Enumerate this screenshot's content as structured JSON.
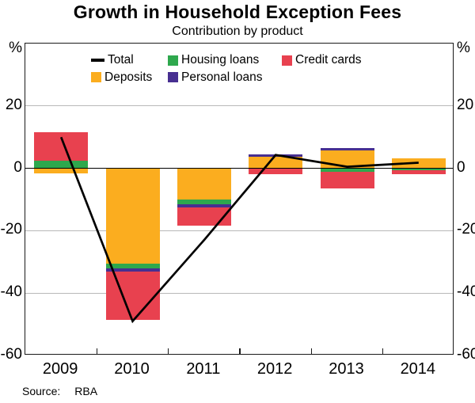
{
  "header": {
    "title": "Growth in Household Exception Fees",
    "subtitle": "Contribution by product"
  },
  "footer": {
    "source_label": "Source:",
    "source_value": "RBA"
  },
  "y_axis": {
    "unit": "%",
    "ticks": [
      {
        "label": "%",
        "value": 40
      },
      {
        "label": "20",
        "value": 20
      },
      {
        "label": "0",
        "value": 0
      },
      {
        "label": "-20",
        "value": -20
      },
      {
        "label": "-40",
        "value": -40
      },
      {
        "label": "-60",
        "value": -60
      }
    ]
  },
  "legend": {
    "rows": [
      [
        {
          "key": "total",
          "label": "Total"
        },
        {
          "key": "housing",
          "label": "Housing loans"
        },
        {
          "key": "credit",
          "label": "Credit cards"
        }
      ],
      [
        {
          "key": "deposits",
          "label": "Deposits"
        },
        {
          "key": "personal",
          "label": "Personal loans"
        }
      ]
    ]
  },
  "colors": {
    "total": "#000000",
    "housing": "#2ea84d",
    "deposits": "#fbad1f",
    "personal": "#472f91",
    "credit": "#e8414f",
    "grid": "#b8b8b8",
    "frame": "#1a1a1a"
  },
  "chart_data": {
    "type": "bar",
    "subtype": "stacked-bars-with-total-line",
    "title": "Growth in Household Exception Fees",
    "subtitle": "Contribution by product",
    "unit": "%",
    "categories": [
      "2009",
      "2010",
      "2011",
      "2012",
      "2013",
      "2014"
    ],
    "ylim": [
      -60,
      40
    ],
    "yticks": [
      20,
      0,
      -20,
      -40,
      -60
    ],
    "grid": true,
    "legend_position": "top-center",
    "series": [
      {
        "name": "Total",
        "type": "line",
        "color_key": "total",
        "values": [
          10,
          -49,
          -23,
          4.3,
          0.5,
          1.8
        ]
      },
      {
        "name": "Housing loans",
        "type": "bar",
        "color_key": "housing",
        "values": [
          2.5,
          -1.5,
          -1.5,
          0,
          -1.0,
          -0.5
        ]
      },
      {
        "name": "Deposits",
        "type": "bar",
        "color_key": "deposits",
        "values": [
          -1.7,
          -30.5,
          -10,
          3.8,
          5.7,
          3.1
        ]
      },
      {
        "name": "Personal loans",
        "type": "bar",
        "color_key": "personal",
        "values": [
          0,
          -1.0,
          -1.0,
          0.7,
          0.8,
          0
        ]
      },
      {
        "name": "Credit cards",
        "type": "bar",
        "color_key": "credit",
        "values": [
          9,
          -15.5,
          -6,
          -2.0,
          -5.5,
          -1.5
        ]
      }
    ],
    "stacks": [
      {
        "year": "2009",
        "segments": [
          {
            "product": "Housing loans",
            "color_key": "housing",
            "from": 0,
            "to": 2.5
          },
          {
            "product": "Credit cards",
            "color_key": "credit",
            "from": 2.5,
            "to": 11.5
          },
          {
            "product": "Deposits",
            "color_key": "deposits",
            "from": 0,
            "to": -1.7
          }
        ]
      },
      {
        "year": "2010",
        "segments": [
          {
            "product": "Deposits",
            "color_key": "deposits",
            "from": 0,
            "to": -30.5
          },
          {
            "product": "Housing loans",
            "color_key": "housing",
            "from": -30.5,
            "to": -32
          },
          {
            "product": "Personal loans",
            "color_key": "personal",
            "from": -32,
            "to": -33
          },
          {
            "product": "Credit cards",
            "color_key": "credit",
            "from": -33,
            "to": -48.5
          }
        ]
      },
      {
        "year": "2011",
        "segments": [
          {
            "product": "Deposits",
            "color_key": "deposits",
            "from": 0,
            "to": -10
          },
          {
            "product": "Housing loans",
            "color_key": "housing",
            "from": -10,
            "to": -11.5
          },
          {
            "product": "Personal loans",
            "color_key": "personal",
            "from": -11.5,
            "to": -12.5
          },
          {
            "product": "Credit cards",
            "color_key": "credit",
            "from": -12.5,
            "to": -18.5
          }
        ]
      },
      {
        "year": "2012",
        "segments": [
          {
            "product": "Deposits",
            "color_key": "deposits",
            "from": 0,
            "to": 3.8
          },
          {
            "product": "Personal loans",
            "color_key": "personal",
            "from": 3.8,
            "to": 4.5
          },
          {
            "product": "Credit cards",
            "color_key": "credit",
            "from": 0,
            "to": -2.0
          }
        ]
      },
      {
        "year": "2013",
        "segments": [
          {
            "product": "Deposits",
            "color_key": "deposits",
            "from": 0,
            "to": 5.7
          },
          {
            "product": "Personal loans",
            "color_key": "personal",
            "from": 5.7,
            "to": 6.5
          },
          {
            "product": "Housing loans",
            "color_key": "housing",
            "from": 0,
            "to": -1.0
          },
          {
            "product": "Credit cards",
            "color_key": "credit",
            "from": -1.0,
            "to": -6.5
          }
        ]
      },
      {
        "year": "2014",
        "segments": [
          {
            "product": "Deposits",
            "color_key": "deposits",
            "from": 0,
            "to": 3.1
          },
          {
            "product": "Housing loans",
            "color_key": "housing",
            "from": 0,
            "to": -0.5
          },
          {
            "product": "Credit cards",
            "color_key": "credit",
            "from": -0.5,
            "to": -2.0
          }
        ]
      }
    ]
  }
}
